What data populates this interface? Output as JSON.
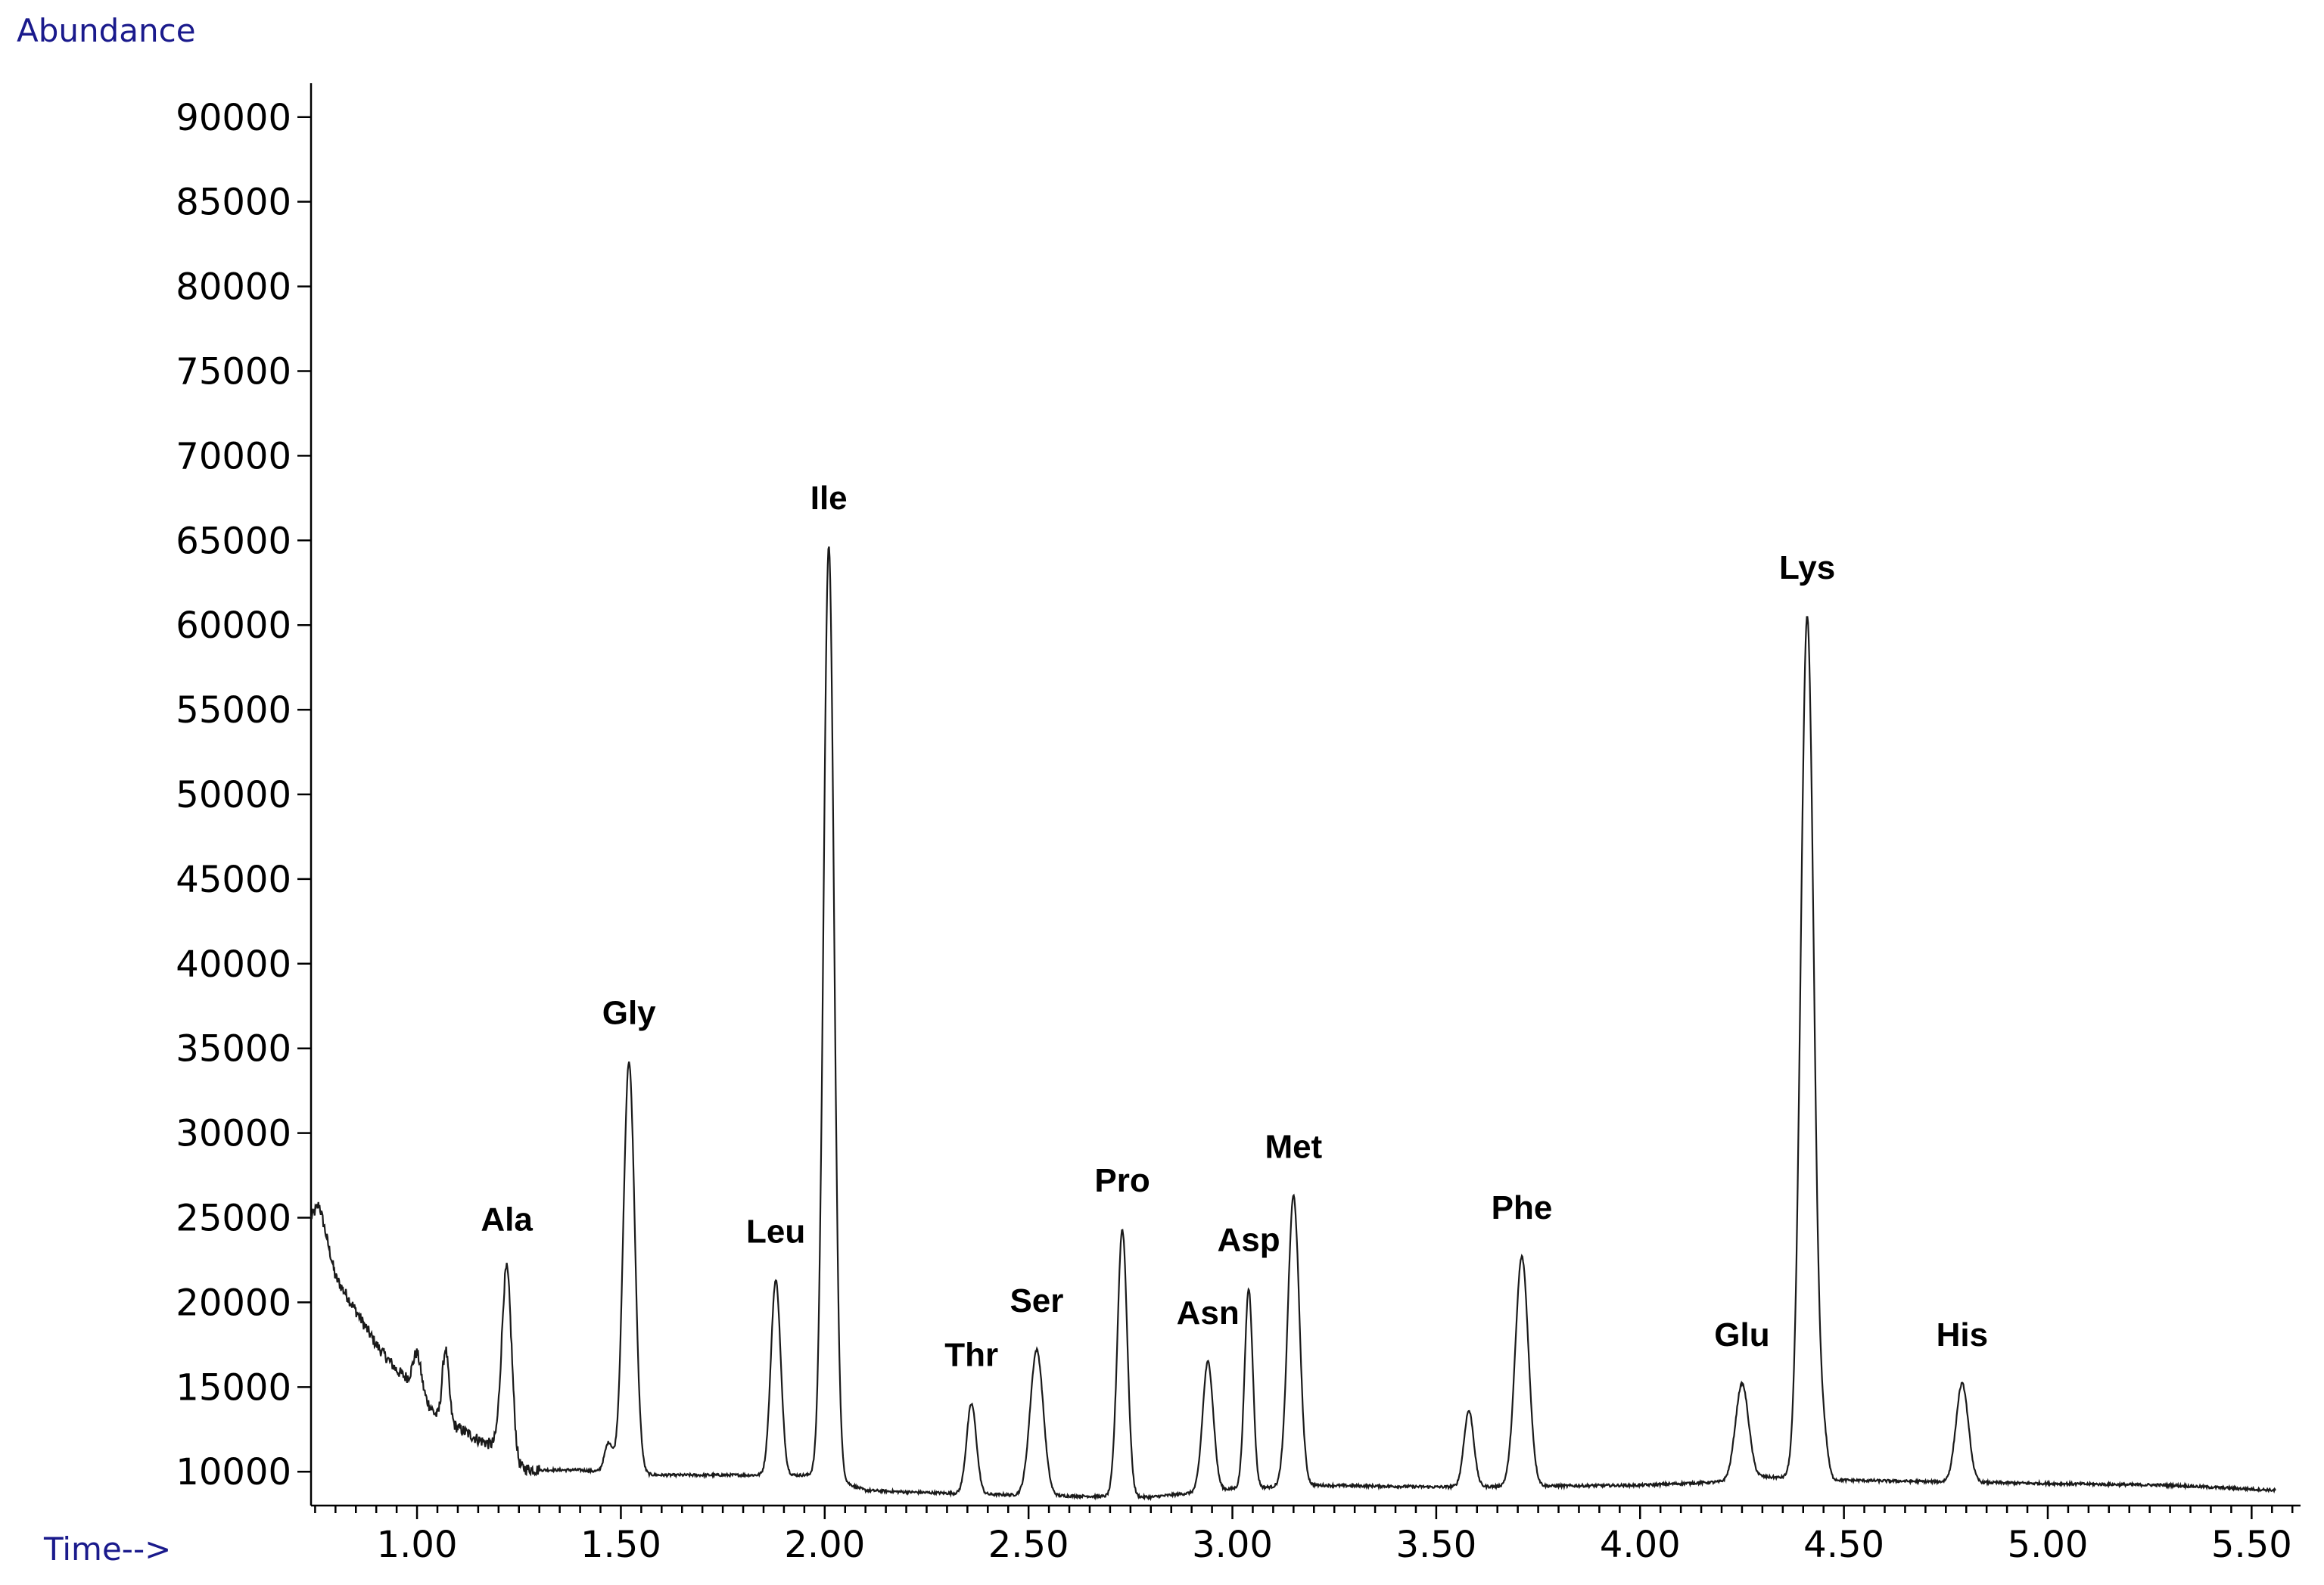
{
  "chart_data": {
    "type": "line",
    "ylabel": "Abundance",
    "xlabel": "Time-->",
    "xlim": [
      0.74,
      5.62
    ],
    "ylim": [
      8000,
      92000
    ],
    "x_ticks": [
      1.0,
      1.5,
      2.0,
      2.5,
      3.0,
      3.5,
      4.0,
      4.5,
      5.0,
      5.5
    ],
    "x_tick_labels": [
      "1.00",
      "1.50",
      "2.00",
      "2.50",
      "3.00",
      "3.50",
      "4.00",
      "4.50",
      "5.00",
      "5.50"
    ],
    "y_ticks": [
      10000,
      15000,
      20000,
      25000,
      30000,
      35000,
      40000,
      45000,
      50000,
      55000,
      60000,
      65000,
      70000,
      75000,
      80000,
      85000,
      90000
    ],
    "y_tick_labels": [
      "10000",
      "15000",
      "20000",
      "25000",
      "30000",
      "35000",
      "40000",
      "45000",
      "50000",
      "55000",
      "60000",
      "65000",
      "70000",
      "75000",
      "80000",
      "85000",
      "90000"
    ],
    "grid": false,
    "colors": {
      "axis_title": "#1a1a8c",
      "trace": "#1a1a1a"
    },
    "baseline": {
      "x": [
        0.74,
        0.76,
        0.8,
        0.85,
        0.9,
        0.95,
        1.0,
        1.05,
        1.1,
        1.15,
        1.2,
        1.25,
        1.3,
        1.4,
        1.5,
        1.6,
        1.8,
        2.0,
        2.1,
        2.2,
        2.5,
        2.8,
        3.0,
        3.2,
        3.5,
        4.0,
        4.2,
        4.3,
        4.5,
        5.0,
        5.3,
        5.56
      ],
      "y": [
        25000,
        25800,
        21500,
        19500,
        17500,
        16000,
        15000,
        13200,
        12600,
        11900,
        11400,
        10200,
        10100,
        10100,
        9900,
        9800,
        9800,
        9800,
        8900,
        8800,
        8600,
        8500,
        9000,
        9200,
        9100,
        9200,
        9400,
        9700,
        9500,
        9300,
        9200,
        8900
      ]
    },
    "peaks": [
      {
        "name": "Ala",
        "x": 1.22,
        "y": 22000,
        "width": 0.012
      },
      {
        "name": "Gly",
        "x": 1.52,
        "y": 34200,
        "width": 0.014
      },
      {
        "name": "Leu",
        "x": 1.88,
        "y": 21300,
        "width": 0.012
      },
      {
        "name": "Ile",
        "x": 2.01,
        "y": 64600,
        "width": 0.013
      },
      {
        "name": "Thr",
        "x": 2.36,
        "y": 14000,
        "width": 0.012
      },
      {
        "name": "Ser",
        "x": 2.52,
        "y": 17200,
        "width": 0.016
      },
      {
        "name": "Pro",
        "x": 2.73,
        "y": 24300,
        "width": 0.012
      },
      {
        "name": "Asn",
        "x": 2.94,
        "y": 16500,
        "width": 0.013
      },
      {
        "name": "Asp",
        "x": 3.04,
        "y": 20800,
        "width": 0.01
      },
      {
        "name": "Met",
        "x": 3.15,
        "y": 26300,
        "width": 0.014
      },
      {
        "name": "",
        "x": 3.58,
        "y": 13600,
        "width": 0.012
      },
      {
        "name": "Phe",
        "x": 3.71,
        "y": 22700,
        "width": 0.016
      },
      {
        "name": "Glu",
        "x": 4.25,
        "y": 15200,
        "width": 0.016
      },
      {
        "name": "Lys",
        "x": 4.41,
        "y": 60500,
        "width": 0.016
      },
      {
        "name": "His",
        "x": 4.79,
        "y": 15200,
        "width": 0.015
      }
    ],
    "minor_peaks": [
      {
        "x": 1.0,
        "y": 17000,
        "width": 0.01
      },
      {
        "x": 1.07,
        "y": 17200,
        "width": 0.008
      },
      {
        "x": 1.47,
        "y": 11700,
        "width": 0.01
      },
      {
        "x": 4.45,
        "y": 11800,
        "width": 0.01
      }
    ]
  }
}
